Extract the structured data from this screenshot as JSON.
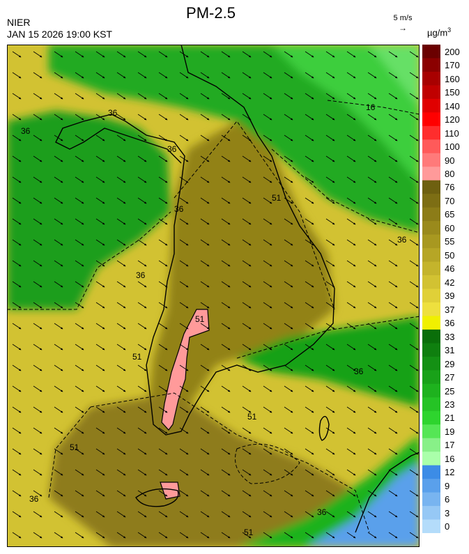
{
  "header": {
    "agency": "NIER",
    "valid_time": "JAN 15 2026 19:00 KST",
    "title": "PM-2.5",
    "wind_reference": "5 m/s",
    "unit": "µg/m",
    "unit_exponent": "3"
  },
  "legend": {
    "labels": [
      "200",
      "170",
      "160",
      "150",
      "140",
      "120",
      "110",
      "100",
      "90",
      "80",
      "76",
      "70",
      "65",
      "60",
      "55",
      "50",
      "46",
      "42",
      "39",
      "37",
      "36",
      "33",
      "31",
      "29",
      "27",
      "25",
      "23",
      "21",
      "19",
      "17",
      "16",
      "12",
      "9",
      "6",
      "3",
      "0"
    ],
    "colors": [
      "#6b0000",
      "#8b0000",
      "#a80000",
      "#c00000",
      "#e00000",
      "#ff0000",
      "#ff2d2d",
      "#ff5a5a",
      "#ff7a7a",
      "#ff9a9a",
      "#6e6010",
      "#7d6e14",
      "#8c7c18",
      "#9a8a1c",
      "#a89820",
      "#b6a626",
      "#c4b42c",
      "#d2c232",
      "#e0d038",
      "#eee03e",
      "#f0f000",
      "#0a6e0a",
      "#0f7f0f",
      "#149014",
      "#19a119",
      "#1eb21e",
      "#25c325",
      "#2ed42e",
      "#55e655",
      "#88f088",
      "#aaffaa",
      "#3c8ce6",
      "#5aa0eb",
      "#78b4f0",
      "#96c8f5",
      "#b4dcfa"
    ]
  },
  "map": {
    "contour_labels": [
      "36",
      "36",
      "36",
      "36",
      "36",
      "51",
      "51",
      "51",
      "51",
      "51",
      "51",
      "16",
      "36",
      "36",
      "36",
      "36"
    ]
  }
}
